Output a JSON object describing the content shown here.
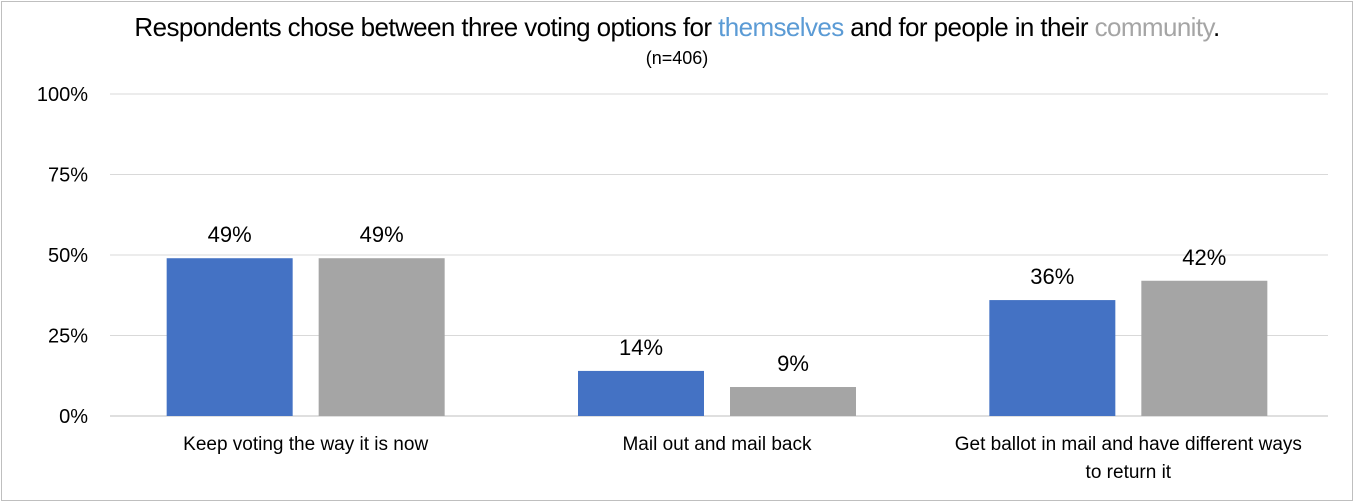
{
  "chart_data": {
    "type": "bar",
    "title_parts": [
      {
        "text": "Respondents chose between three voting options for ",
        "role": "plain"
      },
      {
        "text": "themselves",
        "role": "self"
      },
      {
        "text": " and for people in their ",
        "role": "plain"
      },
      {
        "text": "community",
        "role": "comm"
      },
      {
        "text": ".",
        "role": "plain"
      }
    ],
    "subtitle": "(n=406)",
    "categories": [
      [
        "Keep voting the way it is now"
      ],
      [
        "Mail out and mail back"
      ],
      [
        "Get ballot in mail and have different ways",
        "to return it"
      ]
    ],
    "series": [
      {
        "values": [
          49,
          14,
          36
        ],
        "data_labels": [
          "49%",
          "14%",
          "36%"
        ],
        "color": "#4472c4"
      },
      {
        "values": [
          49,
          9,
          42
        ],
        "data_labels": [
          "49%",
          "9%",
          "42%"
        ],
        "color": "#a5a5a5"
      }
    ],
    "ylim": [
      0,
      100
    ],
    "yticks": [
      0,
      25,
      50,
      75,
      100
    ],
    "ytick_labels": [
      "0%",
      "25%",
      "50%",
      "75%",
      "100%"
    ],
    "grid": true,
    "legend": "none"
  },
  "colors": {
    "self": "#5b9bd5",
    "comm": "#a5a5a5",
    "gridline": "#d9d9d9",
    "axis": "#bfbfbf"
  }
}
